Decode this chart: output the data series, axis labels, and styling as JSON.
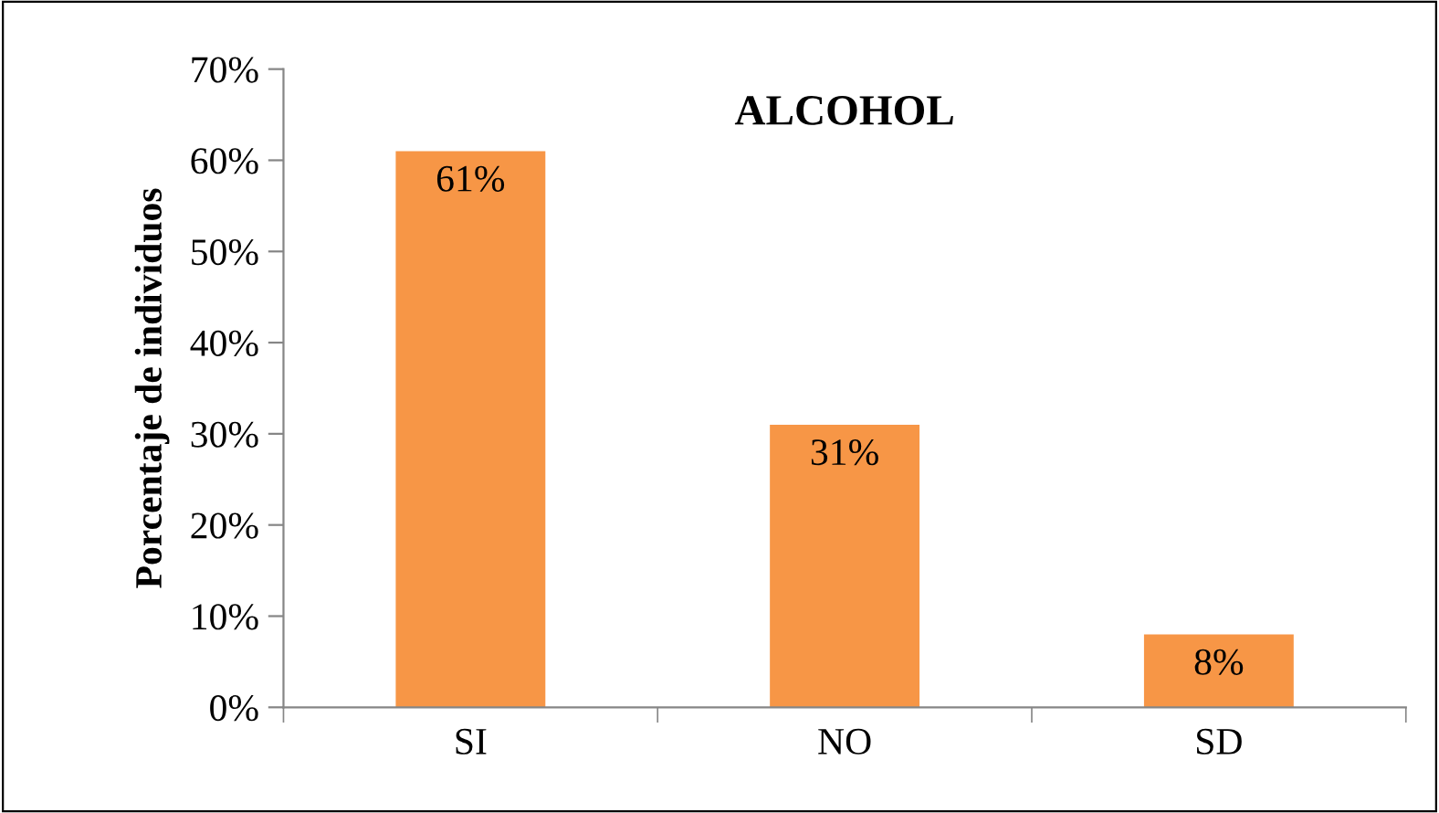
{
  "chart_data": {
    "type": "bar",
    "title": "ALCOHOL",
    "ylabel": "Porcentaje de individuos",
    "categories": [
      "SI",
      "NO",
      "SD"
    ],
    "values": [
      61,
      31,
      8
    ],
    "color": "#f79646",
    "value_labels": [
      "61%",
      "31%",
      "8%"
    ],
    "ylim": [
      0,
      70
    ],
    "yticks": [
      {
        "value": 0,
        "label": "0%"
      },
      {
        "value": 10,
        "label": "10%"
      },
      {
        "value": 20,
        "label": "20%"
      },
      {
        "value": 30,
        "label": "30%"
      },
      {
        "value": 40,
        "label": "40%"
      },
      {
        "value": 50,
        "label": "50%"
      },
      {
        "value": 60,
        "label": "60%"
      },
      {
        "value": 70,
        "label": "70%"
      }
    ],
    "grid": false
  }
}
